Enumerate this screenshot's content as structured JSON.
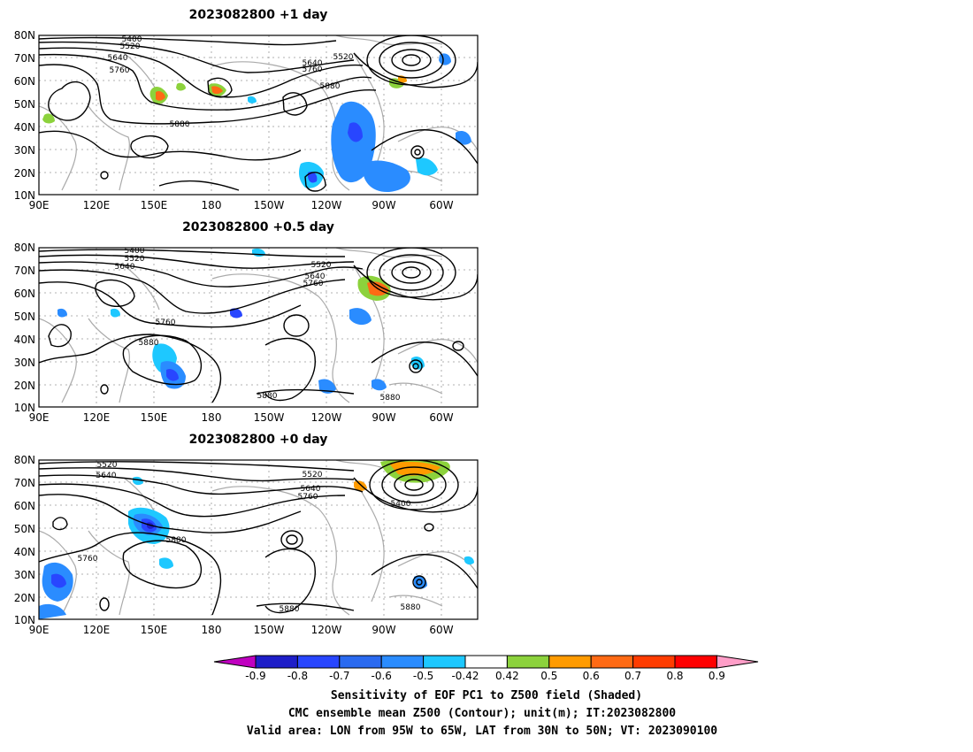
{
  "panels": [
    {
      "title": "2023082800  +1 day",
      "contour_labels": [
        "5400",
        "5520",
        "5640",
        "5760",
        "5520",
        "5640",
        "5760",
        "5880",
        "5880"
      ]
    },
    {
      "title": "2023082800  +0.5 day",
      "contour_labels": [
        "5400",
        "5520",
        "5640",
        "5520",
        "5640",
        "5760",
        "5760",
        "5880",
        "5880",
        "5880"
      ]
    },
    {
      "title": "2023082800  +0 day",
      "contour_labels": [
        "5520",
        "5640",
        "5520",
        "5640",
        "5760",
        "5400",
        "5880",
        "5760",
        "5880",
        "5880"
      ]
    }
  ],
  "lat_labels": [
    "80N",
    "70N",
    "60N",
    "50N",
    "40N",
    "30N",
    "20N",
    "10N"
  ],
  "lon_labels": [
    "90E",
    "120E",
    "150E",
    "180",
    "150W",
    "120W",
    "90W",
    "60W"
  ],
  "colorbar": {
    "tick_labels": [
      "-0.9",
      "-0.8",
      "-0.7",
      "-0.6",
      "-0.5",
      "-0.42",
      "0.42",
      "0.5",
      "0.6",
      "0.7",
      "0.8",
      "0.9"
    ],
    "colors": [
      "#c000c0",
      "#1e1ec8",
      "#2846ff",
      "#2a6af0",
      "#2a8cff",
      "#1ec8ff",
      "#ffffff",
      "#8cd23c",
      "#ff9b00",
      "#ff6a14",
      "#ff3c00",
      "#ff0000",
      "#ff9ec8"
    ]
  },
  "caption": {
    "line1": "Sensitivity of EOF PC1 to Z500 field (Shaded)",
    "line2": "CMC ensemble mean Z500 (Contour); unit(m); IT:2023082800",
    "line3": "Valid area: LON from 95W to 65W, LAT from 30N to 50N; VT: 2023090100"
  }
}
